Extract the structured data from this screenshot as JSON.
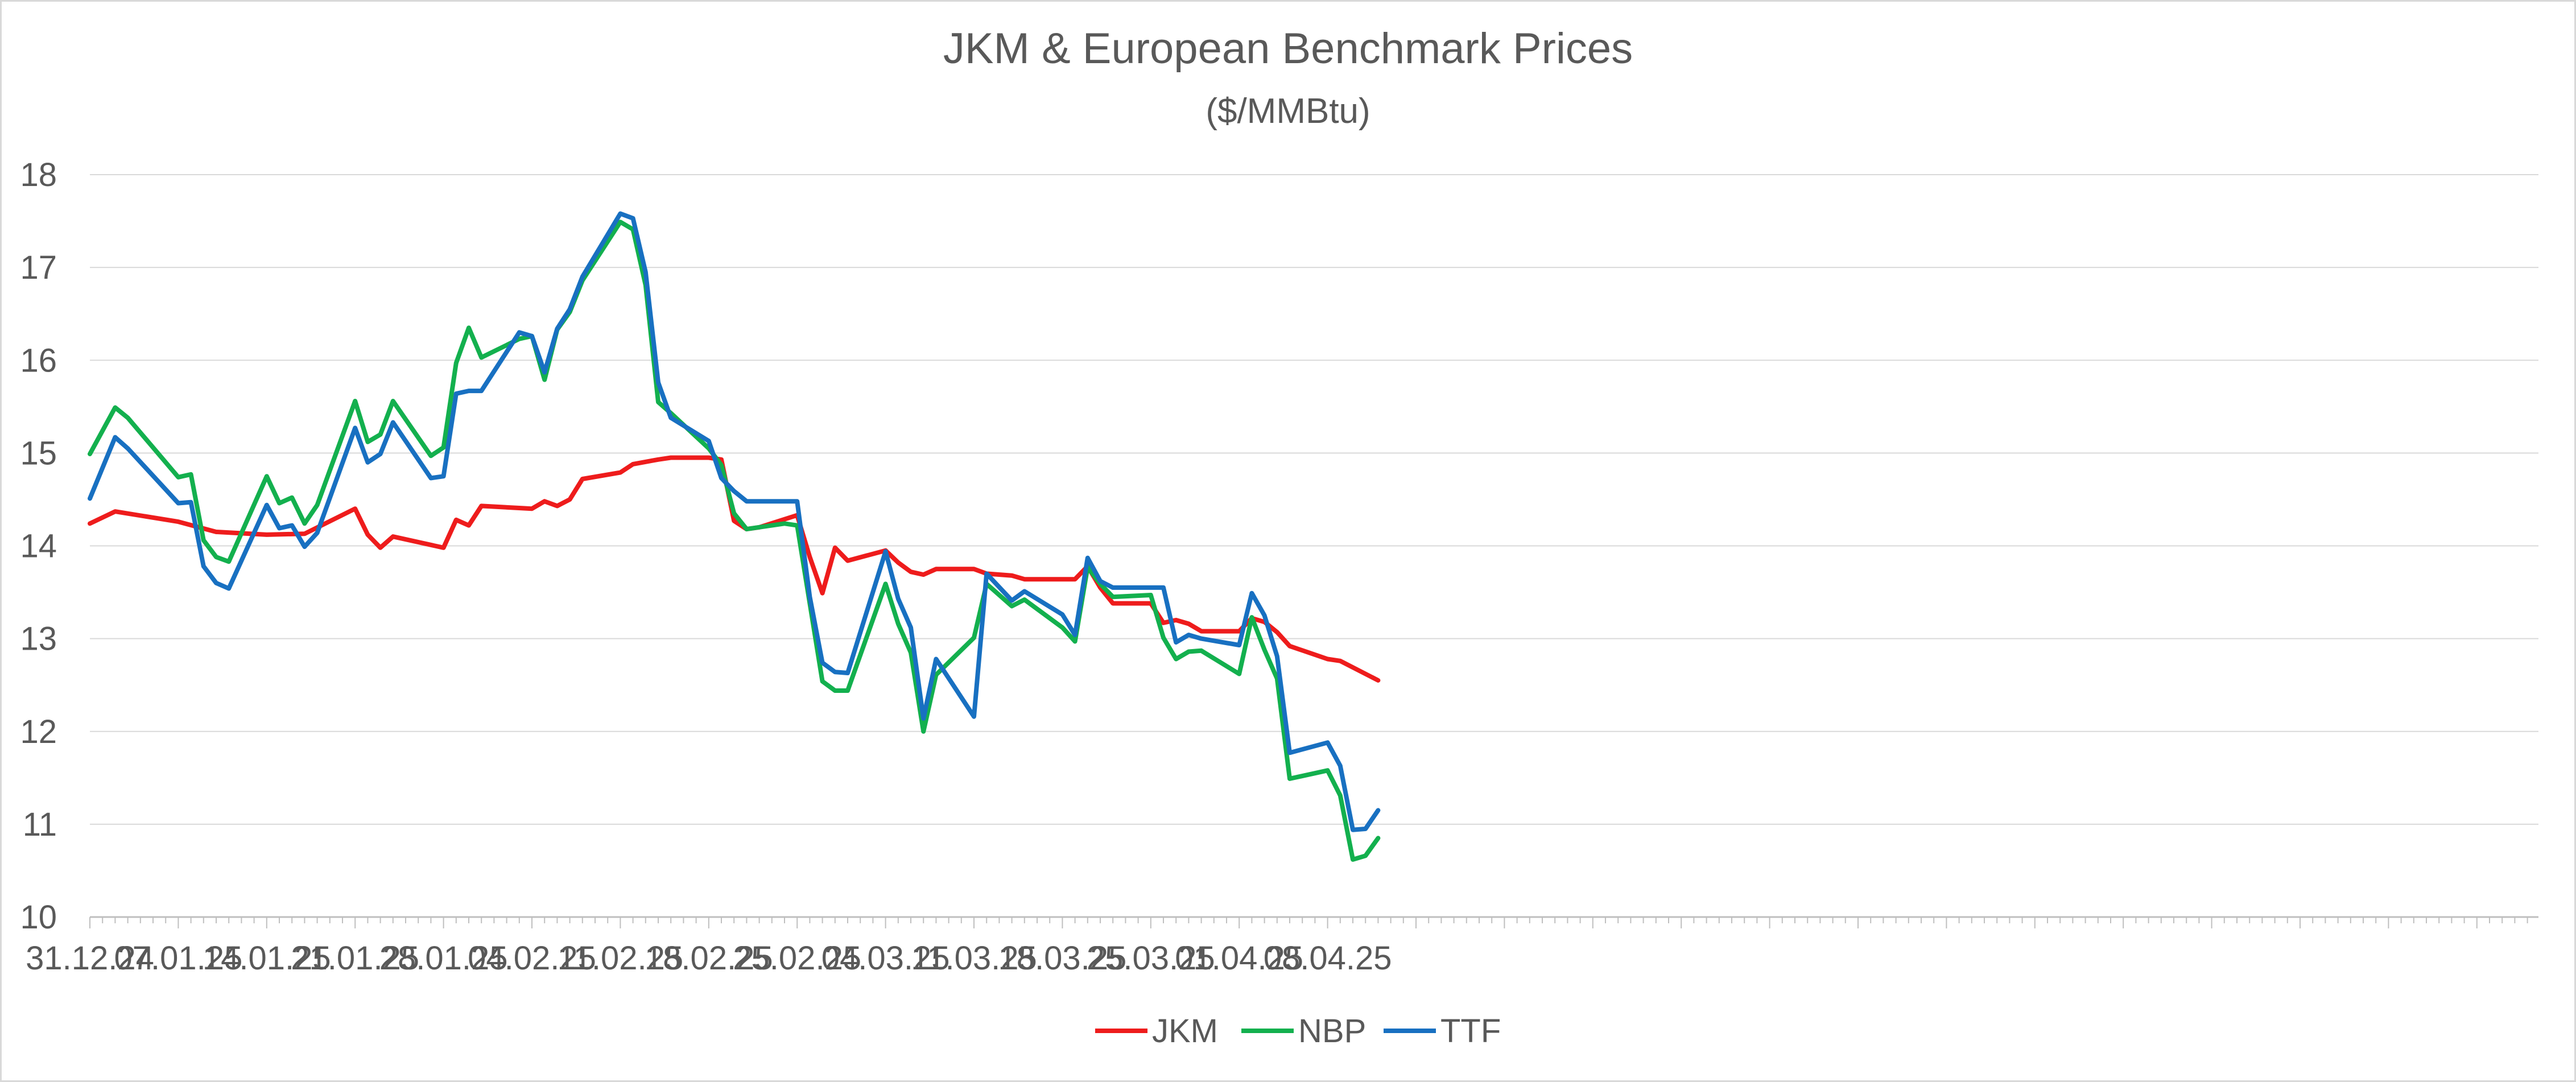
{
  "chart_data": {
    "type": "line",
    "title": "JKM & European Benchmark Prices",
    "subtitle": "($/MMBtu)",
    "xlabel": "",
    "ylabel": "",
    "ylim": [
      10,
      18
    ],
    "yticks": [
      "10",
      "11",
      "12",
      "13",
      "14",
      "15",
      "16",
      "17",
      "18"
    ],
    "grid": "horizontal",
    "legend_position": "bottom",
    "date_start": "2024-12-31",
    "x_tick_labels": [
      "31.12.24",
      "07.01.25",
      "14.01.25",
      "21.01.25",
      "28.01.25",
      "04.02.25",
      "11.02.25",
      "18.02.25",
      "25.02.25",
      "04.03.25",
      "11.03.25",
      "18.03.25",
      "25.03.25",
      "01.04.25",
      "08.04.25"
    ],
    "series": [
      {
        "name": "JKM",
        "color": "#ee1c1c",
        "points": [
          [
            0,
            14.24
          ],
          [
            2,
            14.37
          ],
          [
            7,
            14.26
          ],
          [
            10,
            14.15
          ],
          [
            14,
            14.12
          ],
          [
            17,
            14.13
          ],
          [
            21,
            14.4
          ],
          [
            22,
            14.12
          ],
          [
            23,
            13.98
          ],
          [
            24,
            14.1
          ],
          [
            28,
            13.98
          ],
          [
            29,
            14.28
          ],
          [
            30,
            14.22
          ],
          [
            31,
            14.43
          ],
          [
            35,
            14.4
          ],
          [
            36,
            14.48
          ],
          [
            37,
            14.43
          ],
          [
            38,
            14.5
          ],
          [
            39,
            14.72
          ],
          [
            42,
            14.79
          ],
          [
            43,
            14.88
          ],
          [
            45,
            14.93
          ],
          [
            46,
            14.95
          ],
          [
            49,
            14.95
          ],
          [
            50,
            14.93
          ],
          [
            51,
            14.27
          ],
          [
            52,
            14.18
          ],
          [
            53,
            14.2
          ],
          [
            56,
            14.33
          ],
          [
            57,
            13.88
          ],
          [
            58,
            13.49
          ],
          [
            59,
            13.98
          ],
          [
            60,
            13.84
          ],
          [
            63,
            13.95
          ],
          [
            64,
            13.82
          ],
          [
            65,
            13.72
          ],
          [
            66,
            13.69
          ],
          [
            67,
            13.75
          ],
          [
            70,
            13.75
          ],
          [
            71,
            13.7
          ],
          [
            73,
            13.68
          ],
          [
            74,
            13.64
          ],
          [
            78,
            13.64
          ],
          [
            79,
            13.78
          ],
          [
            80,
            13.55
          ],
          [
            81,
            13.38
          ],
          [
            84,
            13.38
          ],
          [
            85,
            13.17
          ],
          [
            86,
            13.2
          ],
          [
            87,
            13.16
          ],
          [
            88,
            13.08
          ],
          [
            91,
            13.08
          ],
          [
            92,
            13.22
          ],
          [
            93,
            13.18
          ],
          [
            94,
            13.07
          ],
          [
            95,
            12.92
          ],
          [
            98,
            12.78
          ],
          [
            99,
            12.76
          ],
          [
            102,
            12.55
          ]
        ]
      },
      {
        "name": "NBP",
        "color": "#13b04e",
        "points": [
          [
            0,
            14.99
          ],
          [
            2,
            15.49
          ],
          [
            3,
            15.38
          ],
          [
            7,
            14.74
          ],
          [
            8,
            14.77
          ],
          [
            9,
            14.06
          ],
          [
            10,
            13.88
          ],
          [
            11,
            13.83
          ],
          [
            14,
            14.75
          ],
          [
            15,
            14.46
          ],
          [
            16,
            14.52
          ],
          [
            17,
            14.24
          ],
          [
            18,
            14.44
          ],
          [
            21,
            15.56
          ],
          [
            22,
            15.12
          ],
          [
            23,
            15.2
          ],
          [
            24,
            15.56
          ],
          [
            27,
            14.97
          ],
          [
            28,
            15.06
          ],
          [
            29,
            15.97
          ],
          [
            30,
            16.35
          ],
          [
            31,
            16.03
          ],
          [
            34,
            16.23
          ],
          [
            35,
            16.26
          ],
          [
            36,
            15.79
          ],
          [
            37,
            16.33
          ],
          [
            38,
            16.52
          ],
          [
            39,
            16.86
          ],
          [
            42,
            17.49
          ],
          [
            43,
            17.41
          ],
          [
            44,
            16.81
          ],
          [
            45,
            15.55
          ],
          [
            46,
            15.43
          ],
          [
            49,
            15.05
          ],
          [
            50,
            14.87
          ],
          [
            51,
            14.35
          ],
          [
            52,
            14.18
          ],
          [
            55,
            14.24
          ],
          [
            56,
            14.22
          ],
          [
            57,
            13.38
          ],
          [
            58,
            12.54
          ],
          [
            59,
            12.44
          ],
          [
            60,
            12.44
          ],
          [
            63,
            13.59
          ],
          [
            64,
            13.16
          ],
          [
            65,
            12.85
          ],
          [
            66,
            12.0
          ],
          [
            67,
            12.61
          ],
          [
            70,
            13.01
          ],
          [
            71,
            13.59
          ],
          [
            73,
            13.35
          ],
          [
            74,
            13.42
          ],
          [
            77,
            13.12
          ],
          [
            78,
            12.97
          ],
          [
            79,
            13.77
          ],
          [
            80,
            13.59
          ],
          [
            81,
            13.45
          ],
          [
            84,
            13.47
          ],
          [
            85,
            13.01
          ],
          [
            86,
            12.78
          ],
          [
            87,
            12.86
          ],
          [
            88,
            12.87
          ],
          [
            91,
            12.62
          ],
          [
            92,
            13.23
          ],
          [
            93,
            12.88
          ],
          [
            94,
            12.57
          ],
          [
            95,
            11.49
          ],
          [
            98,
            11.58
          ],
          [
            99,
            11.31
          ],
          [
            100,
            10.62
          ],
          [
            101,
            10.66
          ],
          [
            102,
            10.85
          ]
        ]
      },
      {
        "name": "TTF",
        "color": "#1870c1",
        "points": [
          [
            0,
            14.51
          ],
          [
            2,
            15.17
          ],
          [
            3,
            15.05
          ],
          [
            7,
            14.46
          ],
          [
            8,
            14.47
          ],
          [
            9,
            13.78
          ],
          [
            10,
            13.6
          ],
          [
            11,
            13.54
          ],
          [
            14,
            14.44
          ],
          [
            15,
            14.19
          ],
          [
            16,
            14.22
          ],
          [
            17,
            13.99
          ],
          [
            18,
            14.14
          ],
          [
            21,
            15.27
          ],
          [
            22,
            14.9
          ],
          [
            23,
            14.99
          ],
          [
            24,
            15.33
          ],
          [
            27,
            14.73
          ],
          [
            28,
            14.75
          ],
          [
            29,
            15.64
          ],
          [
            30,
            15.67
          ],
          [
            31,
            15.67
          ],
          [
            34,
            16.3
          ],
          [
            35,
            16.26
          ],
          [
            36,
            15.87
          ],
          [
            37,
            16.34
          ],
          [
            38,
            16.55
          ],
          [
            39,
            16.9
          ],
          [
            42,
            17.58
          ],
          [
            43,
            17.53
          ],
          [
            44,
            16.95
          ],
          [
            45,
            15.76
          ],
          [
            46,
            15.38
          ],
          [
            49,
            15.13
          ],
          [
            50,
            14.73
          ],
          [
            51,
            14.59
          ],
          [
            52,
            14.48
          ],
          [
            56,
            14.48
          ],
          [
            57,
            13.45
          ],
          [
            58,
            12.74
          ],
          [
            59,
            12.64
          ],
          [
            60,
            12.63
          ],
          [
            63,
            13.94
          ],
          [
            64,
            13.43
          ],
          [
            65,
            13.12
          ],
          [
            66,
            12.14
          ],
          [
            67,
            12.78
          ],
          [
            70,
            12.16
          ],
          [
            71,
            13.7
          ],
          [
            73,
            13.41
          ],
          [
            74,
            13.51
          ],
          [
            77,
            13.26
          ],
          [
            78,
            13.04
          ],
          [
            79,
            13.87
          ],
          [
            80,
            13.62
          ],
          [
            81,
            13.55
          ],
          [
            85,
            13.55
          ],
          [
            86,
            12.96
          ],
          [
            87,
            13.04
          ],
          [
            88,
            13.0
          ],
          [
            91,
            12.93
          ],
          [
            92,
            13.49
          ],
          [
            93,
            13.25
          ],
          [
            94,
            12.81
          ],
          [
            95,
            11.77
          ],
          [
            98,
            11.88
          ],
          [
            99,
            11.63
          ],
          [
            100,
            10.94
          ],
          [
            101,
            10.95
          ],
          [
            102,
            11.15
          ]
        ]
      }
    ]
  }
}
